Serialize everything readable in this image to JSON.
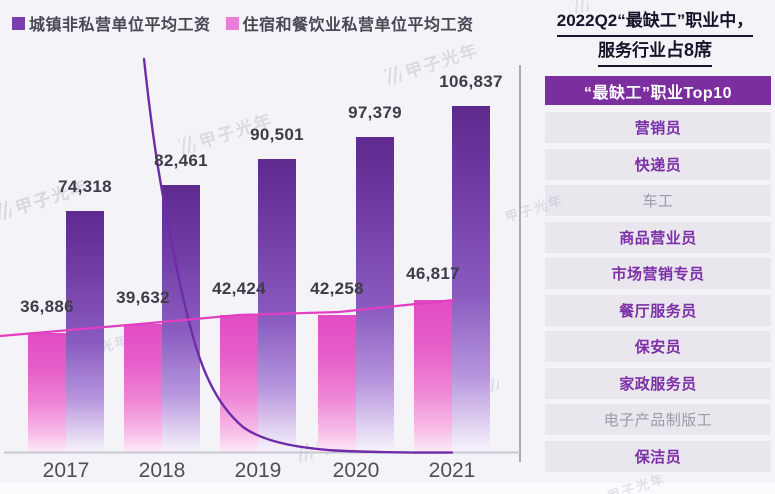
{
  "legend": {
    "items": [
      {
        "label": "城镇非私营单位平均工资",
        "color": "#7a3fad"
      },
      {
        "label": "住宿和餐饮业私营单位平均工资",
        "color": "#e87fd9"
      }
    ]
  },
  "chart_data": {
    "type": "bar",
    "categories": [
      "2017",
      "2018",
      "2019",
      "2020",
      "2021"
    ],
    "series": [
      {
        "name": "城镇非私营单位平均工资",
        "type": "bar",
        "color": "#5e2a8e",
        "values": [
          74318,
          82461,
          90501,
          97379,
          106837
        ],
        "value_labels": [
          "74,318",
          "82,461",
          "90,501",
          "97,379",
          "106,837"
        ]
      },
      {
        "name": "住宿和餐饮业私营单位平均工资",
        "type": "bar",
        "color": "#e14cc3",
        "values": [
          36886,
          39632,
          42424,
          42258,
          46817
        ],
        "value_labels": [
          "36,886",
          "39,632",
          "42,424",
          "42,258",
          "46,817"
        ]
      }
    ],
    "overlays": [
      {
        "name": "pink-trend-line",
        "type": "line",
        "color": "#e23ec1",
        "description": "straight rising trend line across tops of pink bars"
      },
      {
        "name": "purple-decay-curve",
        "type": "line",
        "color": "#6e2ca8",
        "description": "steep exponential decay curve from top-left flattening to baseline at right"
      }
    ],
    "title": "",
    "xlabel": "",
    "ylabel": "",
    "ylim": [
      0,
      140000
    ],
    "grid": false,
    "legend_position": "top-left",
    "axis_line_color": "#c9c7cf"
  },
  "panel": {
    "title_line1": "2022Q2“最缺工”职业中，",
    "title_line2_prefix": "服务行业",
    "title_line2_bold": "占8席",
    "header": "“最缺工”职业Top10",
    "header_bg": "#7b2f9f",
    "items": [
      {
        "label": "营销员",
        "muted": false
      },
      {
        "label": "快递员",
        "muted": false
      },
      {
        "label": "车工",
        "muted": true
      },
      {
        "label": "商品营业员",
        "muted": false
      },
      {
        "label": "市场营销专员",
        "muted": false
      },
      {
        "label": "餐厅服务员",
        "muted": false
      },
      {
        "label": "保安员",
        "muted": false
      },
      {
        "label": "家政服务员",
        "muted": false
      },
      {
        "label": "电子产品制版工",
        "muted": true
      },
      {
        "label": "保洁员",
        "muted": false
      }
    ]
  },
  "watermark": {
    "text": "甲子光年"
  }
}
